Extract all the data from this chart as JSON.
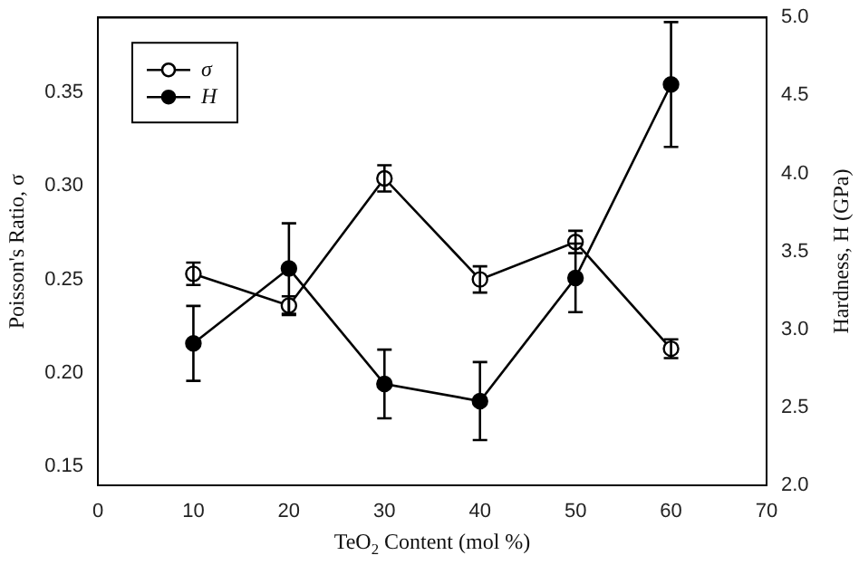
{
  "chart_data": {
    "type": "line",
    "xlabel": "TeO$_{2}$ Content (mol %)",
    "ylabel": "Poisson's Ratio, σ",
    "y2label": "Hardness, H (GPa)",
    "x": [
      10,
      20,
      30,
      40,
      50,
      60
    ],
    "series": [
      {
        "name": "σ",
        "color": "#000000",
        "values": [
          0.253,
          0.236,
          0.304,
          0.25,
          0.27,
          0.213
        ],
        "errors": [
          0.006,
          0.005,
          0.007,
          0.007,
          0.006,
          0.005
        ]
      },
      {
        "name": "H",
        "color": "#000000",
        "axis": "y2",
        "values": [
          2.91,
          3.39,
          2.65,
          2.54,
          3.33,
          4.57
        ],
        "errors": [
          0.24,
          0.29,
          0.22,
          0.25,
          0.22,
          0.4
        ]
      }
    ],
    "xlim": [
      0,
      70
    ],
    "xticks": [
      0,
      10,
      20,
      30,
      40,
      50,
      60,
      70
    ],
    "ylim": [
      0.14,
      0.39
    ],
    "yticks": [
      0.15,
      {
        "value": 0.2,
        "label": "0.20"
      },
      0.25,
      {
        "value": 0.3,
        "label": "0.30"
      },
      0.35
    ],
    "y2lim": [
      2,
      5
    ],
    "y2ticks": [
      {
        "value": 2,
        "label": "2.0"
      },
      2.5,
      {
        "value": 3,
        "label": "3.0"
      },
      3.5,
      {
        "value": 4,
        "label": "4.0"
      },
      4.5,
      {
        "value": 5,
        "label": "5.0"
      }
    ],
    "legend": "top left",
    "marker": "circle",
    "line_style": "solid",
    "grid": false
  }
}
